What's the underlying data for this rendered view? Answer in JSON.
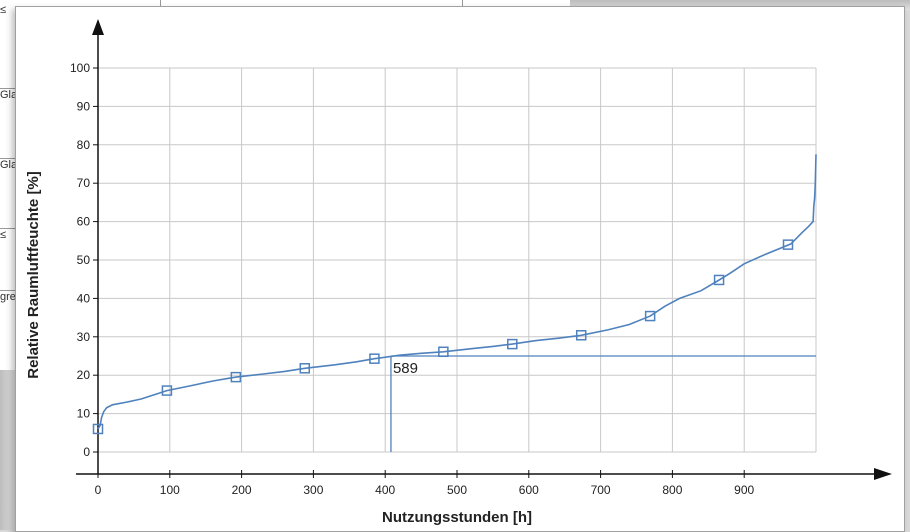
{
  "background": {
    "rows": [
      "≤",
      "Gla",
      "Gla",
      "≤",
      "gre"
    ]
  },
  "chart_data": {
    "type": "line",
    "xlabel": "Nutzungsstunden [h]",
    "ylabel": "Relative Raumluftfeuchte [%]",
    "xlim": [
      0,
      1000
    ],
    "ylim": [
      0,
      100
    ],
    "xticks": [
      0,
      100,
      200,
      300,
      400,
      500,
      600,
      700,
      800,
      900
    ],
    "yticks": [
      0,
      10,
      20,
      30,
      40,
      50,
      60,
      70,
      80,
      90,
      100
    ],
    "grid": true,
    "line_color": "#4f81bd",
    "series": [
      {
        "points": [
          [
            0,
            6
          ],
          [
            3,
            7
          ],
          [
            5,
            9
          ],
          [
            8,
            10.5
          ],
          [
            12,
            11.5
          ],
          [
            20,
            12.3
          ],
          [
            40,
            13
          ],
          [
            60,
            13.8
          ],
          [
            80,
            15
          ],
          [
            96,
            16
          ],
          [
            130,
            17.3
          ],
          [
            160,
            18.5
          ],
          [
            192,
            19.5
          ],
          [
            230,
            20.3
          ],
          [
            260,
            21
          ],
          [
            288,
            21.8
          ],
          [
            330,
            22.7
          ],
          [
            360,
            23.5
          ],
          [
            385,
            24.3
          ],
          [
            420,
            25.2
          ],
          [
            450,
            25.7
          ],
          [
            481,
            26.1
          ],
          [
            520,
            26.9
          ],
          [
            550,
            27.5
          ],
          [
            577,
            28.1
          ],
          [
            610,
            29
          ],
          [
            640,
            29.6
          ],
          [
            673,
            30.4
          ],
          [
            710,
            31.8
          ],
          [
            740,
            33.2
          ],
          [
            769,
            35.4
          ],
          [
            790,
            38
          ],
          [
            810,
            40
          ],
          [
            840,
            42
          ],
          [
            865,
            44.8
          ],
          [
            880,
            46.5
          ],
          [
            900,
            49
          ],
          [
            930,
            51.5
          ],
          [
            965,
            54.2
          ],
          [
            980,
            57
          ],
          [
            990,
            58.8
          ],
          [
            996,
            60
          ],
          [
            997,
            64
          ],
          [
            998,
            66
          ],
          [
            999,
            70
          ],
          [
            1000,
            77.5
          ]
        ],
        "markers": [
          [
            0,
            6
          ],
          [
            96,
            16
          ],
          [
            192,
            19.5
          ],
          [
            288,
            21.8
          ],
          [
            385,
            24.3
          ],
          [
            481,
            26.1
          ],
          [
            577,
            28.1
          ],
          [
            673,
            30.4
          ],
          [
            769,
            35.4
          ],
          [
            865,
            44.8
          ],
          [
            961,
            54
          ]
        ]
      }
    ],
    "annotation": {
      "label": "589",
      "threshold_y": 25,
      "crossing_x": 408
    }
  }
}
